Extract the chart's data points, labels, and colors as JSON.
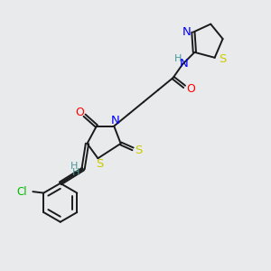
{
  "bg_color": "#e8eaeb",
  "bond_color": "#1a1a1a",
  "N_color": "#0000ff",
  "O_color": "#ff0000",
  "S_color": "#cccc00",
  "Cl_color": "#00bb00",
  "H_color": "#4a9999",
  "lw": 1.4,
  "figsize": [
    3.0,
    3.0
  ],
  "dpi": 100,
  "xlim": [
    0,
    10
  ],
  "ylim": [
    0,
    10
  ]
}
